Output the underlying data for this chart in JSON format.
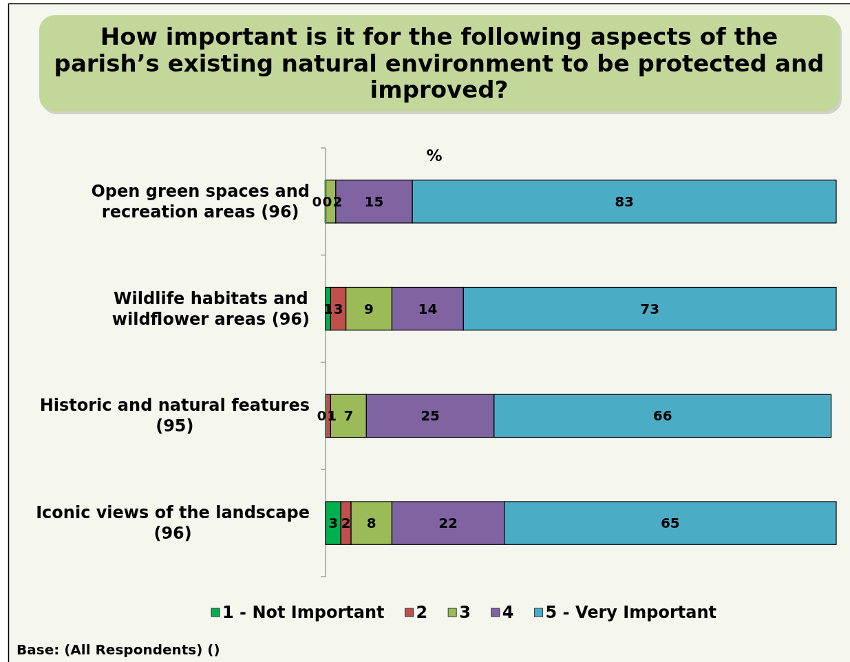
{
  "chart_data": {
    "type": "bar",
    "orientation": "horizontal",
    "stacked": true,
    "title": "How important is it for the following aspects of the parish’s existing natural environment to be protected and improved?",
    "xlabel": "%",
    "categories": [
      "Open green spaces and recreation areas (96)",
      "Wildlife habitats and wildflower areas (96)",
      "Historic and natural features (95)",
      "Iconic views of the landscape (96)"
    ],
    "series": [
      {
        "name": "1 - Not Important",
        "color": "#00b050",
        "values": [
          0,
          1,
          0,
          3
        ]
      },
      {
        "name": "2",
        "color": "#c0504d",
        "values": [
          0,
          3,
          1,
          2
        ]
      },
      {
        "name": "3",
        "color": "#9bbb59",
        "values": [
          2,
          9,
          7,
          8
        ]
      },
      {
        "name": "4",
        "color": "#8064a2",
        "values": [
          15,
          14,
          25,
          22
        ]
      },
      {
        "name": "5 - Very Important",
        "color": "#4bacc6",
        "values": [
          83,
          73,
          66,
          65
        ]
      }
    ],
    "xlim": [
      0,
      100
    ],
    "data_labels": true,
    "legend": "bottom",
    "annotations": [
      "Base: (All Respondents) ()"
    ]
  }
}
